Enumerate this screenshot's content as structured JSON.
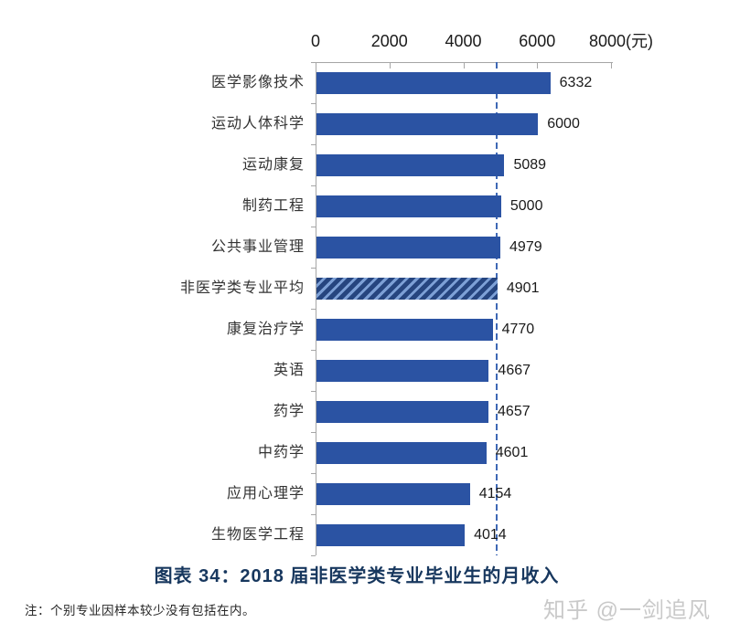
{
  "chart_data": {
    "type": "bar",
    "orientation": "horizontal",
    "title": "图表 34：2018 届非医学类专业毕业生的月收入",
    "categories": [
      "医学影像技术",
      "运动人体科学",
      "运动康复",
      "制药工程",
      "公共事业管理",
      "非医学类专业平均",
      "康复治疗学",
      "英语",
      "药学",
      "中药学",
      "应用心理学",
      "生物医学工程"
    ],
    "values": [
      6332,
      6000,
      5089,
      5000,
      4979,
      4901,
      4770,
      4667,
      4657,
      4601,
      4154,
      4014
    ],
    "average_category": "非医学类专业平均",
    "average_value": 4901,
    "reference_line": {
      "value": 4901,
      "style": "dashed"
    },
    "x_axis": {
      "position": "top",
      "min": 0,
      "max": 8000,
      "ticks": [
        0,
        2000,
        4000,
        6000,
        8000
      ],
      "tick_labels": [
        "0",
        "2000",
        "4000",
        "6000",
        "8000(元)"
      ],
      "unit": "元"
    },
    "grid": false,
    "legend": false,
    "colors": {
      "bar": "#2B53A3",
      "hatch_dark": "#26457F",
      "hatch_light": "#7DA0D6",
      "axis": "#A6A6A6",
      "reference_line": "#3E68B5",
      "title": "#17375E"
    }
  },
  "note": "注：个别专业因样本较少没有包括在内。",
  "watermark": "知乎 @一剑追风"
}
